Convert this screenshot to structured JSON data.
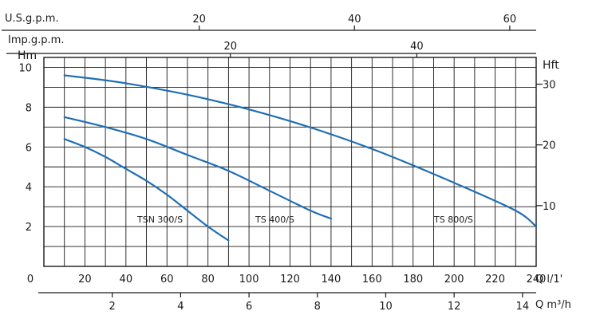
{
  "chart_data": {
    "type": "line",
    "grid": true,
    "axes": {
      "x_main": {
        "label": "Q l/1'",
        "ticks": [
          "0",
          "20",
          "40",
          "60",
          "80",
          "100",
          "120",
          "140",
          "160",
          "180",
          "200",
          "220",
          "240"
        ],
        "range": [
          0,
          240
        ]
      },
      "x_m3h": {
        "label": "Q m³/h",
        "ticks": [
          "2",
          "4",
          "6",
          "8",
          "10",
          "12",
          "14"
        ],
        "range": [
          0,
          14.4
        ]
      },
      "x_usgpm": {
        "label": "U.S.g.p.m.",
        "ticks": [
          "20",
          "40",
          "60"
        ],
        "range": [
          0,
          63.4
        ]
      },
      "x_impgpm": {
        "label": "Imp.g.p.m.",
        "ticks": [
          "20",
          "40"
        ],
        "range": [
          0,
          52.8
        ]
      },
      "y_left": {
        "label": "Hm",
        "ticks": [
          "2",
          "4",
          "6",
          "8",
          "10"
        ],
        "range": [
          0,
          10.5
        ]
      },
      "y_right": {
        "label": "Hft",
        "ticks": [
          "10",
          "20",
          "30"
        ],
        "range": [
          0,
          34.4
        ]
      }
    },
    "series": [
      {
        "name": "TSN 300/S",
        "x": [
          10,
          20,
          30,
          40,
          50,
          60,
          70,
          80,
          90
        ],
        "y": [
          6.4,
          6.0,
          5.5,
          4.9,
          4.3,
          3.6,
          2.8,
          2.0,
          1.3
        ]
      },
      {
        "name": "TS 400/S",
        "x": [
          10,
          30,
          50,
          70,
          90,
          110,
          130,
          140
        ],
        "y": [
          7.5,
          7.0,
          6.4,
          5.6,
          4.8,
          3.8,
          2.8,
          2.4
        ]
      },
      {
        "name": "TS 800/S",
        "x": [
          10,
          40,
          80,
          120,
          160,
          200,
          230,
          240
        ],
        "y": [
          9.6,
          9.2,
          8.4,
          7.3,
          5.9,
          4.2,
          2.8,
          2.0
        ]
      }
    ],
    "curve_labels": [
      "TSN 300/S",
      "TS 400/S",
      "TS 800/S"
    ]
  }
}
